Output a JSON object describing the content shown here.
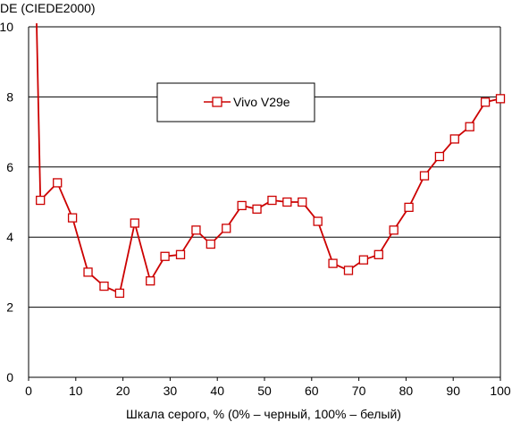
{
  "chart_data": {
    "type": "line",
    "title": "",
    "ylabel": "DE (CIEDE2000)",
    "xlabel": "Шкала серого, % (0% – черный, 100% – белый)",
    "xlim": [
      0,
      100
    ],
    "ylim": [
      0,
      10
    ],
    "xticks": [
      0,
      10,
      20,
      30,
      40,
      50,
      60,
      70,
      80,
      90,
      100
    ],
    "yticks": [
      0,
      2,
      4,
      6,
      8,
      10
    ],
    "grid": "horizontal",
    "legend_position": "top-center",
    "colors": {
      "series": "#cc0000",
      "grid": "#000000",
      "axis": "#000000",
      "background": "#ffffff"
    },
    "series": [
      {
        "name": "Vivo V29e",
        "marker": "square",
        "x": [
          1.7,
          2.5,
          6.1,
          9.3,
          12.6,
          16.0,
          19.3,
          22.5,
          25.8,
          28.9,
          32.2,
          35.5,
          38.6,
          41.9,
          45.2,
          48.4,
          51.6,
          54.8,
          58.0,
          61.3,
          64.5,
          67.8,
          71.0,
          74.2,
          77.4,
          80.6,
          83.9,
          87.1,
          90.3,
          93.5,
          96.8,
          100.0
        ],
        "y": [
          10.1,
          5.05,
          5.55,
          4.55,
          3.0,
          2.6,
          2.4,
          4.4,
          2.75,
          3.45,
          3.5,
          4.2,
          3.8,
          4.25,
          4.9,
          4.8,
          5.05,
          5.0,
          5.0,
          4.45,
          3.25,
          3.05,
          3.35,
          3.5,
          4.2,
          4.85,
          5.75,
          6.3,
          6.8,
          7.15,
          7.85,
          7.95
        ],
        "markers_from_index": 1
      }
    ]
  }
}
